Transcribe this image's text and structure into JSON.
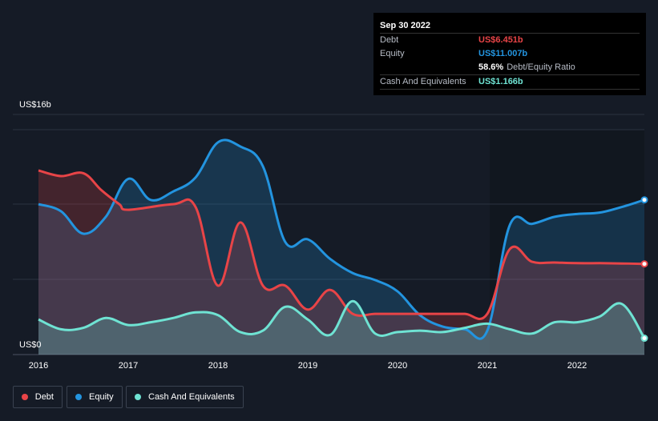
{
  "tooltip": {
    "date": "Sep 30 2022",
    "rows": [
      {
        "label": "Debt",
        "value": "US$6.451b",
        "color": "#e84447"
      },
      {
        "label": "Equity",
        "value": "US$11.007b",
        "color": "#2394df"
      },
      {
        "label": "",
        "value": "58.6%",
        "suffix": "Debt/Equity Ratio",
        "color": "#ffffff"
      },
      {
        "label": "Cash And Equivalents",
        "value": "US$1.166b",
        "color": "#6fe3d3"
      }
    ]
  },
  "legend": [
    {
      "label": "Debt",
      "color": "#e84447"
    },
    {
      "label": "Equity",
      "color": "#2394df"
    },
    {
      "label": "Cash And Equivalents",
      "color": "#6fe3d3"
    }
  ],
  "chart_data": {
    "type": "area",
    "ylabel_top": "US$16b",
    "ylabel_bottom": "US$0",
    "ylim": [
      0,
      16
    ],
    "xlim": [
      2016.0,
      2022.75
    ],
    "x_ticks": [
      "2016",
      "2017",
      "2018",
      "2019",
      "2020",
      "2021",
      "2022"
    ],
    "series": [
      {
        "name": "Debt",
        "color": "#e84447",
        "x": [
          2016.0,
          2016.25,
          2016.5,
          2016.7,
          2016.9,
          2017.0,
          2017.5,
          2017.75,
          2018.0,
          2018.25,
          2018.5,
          2018.75,
          2019.0,
          2019.25,
          2019.5,
          2019.75,
          2020.0,
          2020.25,
          2020.5,
          2020.75,
          2021.0,
          2021.25,
          2021.5,
          2021.75,
          2022.0,
          2022.25,
          2022.5,
          2022.75
        ],
        "y": [
          13.1,
          12.7,
          12.9,
          11.7,
          10.7,
          10.3,
          10.7,
          10.5,
          4.9,
          9.4,
          4.9,
          4.9,
          3.2,
          4.6,
          2.9,
          2.9,
          2.9,
          2.9,
          2.9,
          2.9,
          2.9,
          7.5,
          6.6,
          6.55,
          6.5,
          6.5,
          6.48,
          6.451
        ]
      },
      {
        "name": "Equity",
        "color": "#2394df",
        "x": [
          2016.0,
          2016.25,
          2016.5,
          2016.75,
          2017.0,
          2017.25,
          2017.5,
          2017.75,
          2018.0,
          2018.25,
          2018.5,
          2018.75,
          2019.0,
          2019.25,
          2019.5,
          2019.75,
          2020.0,
          2020.25,
          2020.5,
          2020.75,
          2021.0,
          2021.25,
          2021.5,
          2021.75,
          2022.0,
          2022.25,
          2022.5,
          2022.75
        ],
        "y": [
          10.7,
          10.2,
          8.6,
          9.8,
          12.5,
          11.0,
          11.6,
          12.6,
          15.1,
          14.8,
          13.4,
          8.0,
          8.2,
          6.8,
          5.8,
          5.3,
          4.5,
          2.8,
          2.0,
          1.8,
          1.7,
          9.2,
          9.3,
          9.8,
          10.0,
          10.1,
          10.5,
          11.007
        ]
      },
      {
        "name": "Cash And Equivalents",
        "color": "#6fe3d3",
        "x": [
          2016.0,
          2016.25,
          2016.5,
          2016.75,
          2017.0,
          2017.25,
          2017.5,
          2017.75,
          2018.0,
          2018.25,
          2018.5,
          2018.75,
          2019.0,
          2019.25,
          2019.5,
          2019.75,
          2020.0,
          2020.25,
          2020.5,
          2020.75,
          2021.0,
          2021.25,
          2021.5,
          2021.75,
          2022.0,
          2022.25,
          2022.5,
          2022.75
        ],
        "y": [
          2.5,
          1.8,
          1.9,
          2.6,
          2.1,
          2.3,
          2.6,
          3.0,
          2.8,
          1.6,
          1.7,
          3.4,
          2.5,
          1.4,
          3.8,
          1.5,
          1.6,
          1.7,
          1.6,
          1.9,
          2.2,
          1.8,
          1.5,
          2.3,
          2.3,
          2.7,
          3.6,
          1.166
        ]
      }
    ],
    "grid": true
  }
}
